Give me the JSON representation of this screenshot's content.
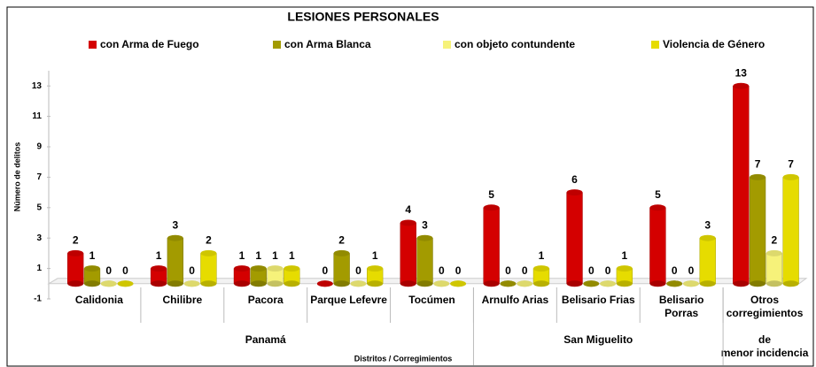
{
  "chart_data": {
    "type": "bar",
    "title": "LESIONES PERSONALES",
    "categories": [
      "Calidonia",
      "Chilibre",
      "Pacora",
      "Parque Lefevre",
      "Tocúmen",
      "Arnulfo Arias",
      "Belisario Frias",
      "Belisario Porras",
      "Otros corregimientos"
    ],
    "groups": [
      {
        "name": "Panamá",
        "count": 5
      },
      {
        "name": "San Miguelito",
        "count": 3
      },
      {
        "name": "de menor incidencia",
        "count": 1
      }
    ],
    "series": [
      {
        "name": "con Arma de Fuego",
        "color": "#d40000",
        "values": [
          2,
          1,
          1,
          0,
          4,
          5,
          6,
          5,
          13
        ]
      },
      {
        "name": "con Arma Blanca",
        "color": "#a39b00",
        "values": [
          1,
          3,
          1,
          2,
          3,
          0,
          0,
          0,
          7
        ]
      },
      {
        "name": "con objeto contundente",
        "color": "#f6f27a",
        "values": [
          0,
          0,
          1,
          0,
          0,
          0,
          0,
          0,
          2
        ]
      },
      {
        "name": "Violencia de Género",
        "color": "#e6dc00",
        "values": [
          0,
          2,
          1,
          1,
          0,
          1,
          1,
          3,
          7
        ]
      }
    ],
    "ylim": [
      -1,
      14
    ],
    "yticks": [
      -1,
      1,
      3,
      5,
      7,
      9,
      11,
      13
    ],
    "ylabel": "Número de delitos",
    "xlabel": "Distritos / Corregimientos"
  }
}
